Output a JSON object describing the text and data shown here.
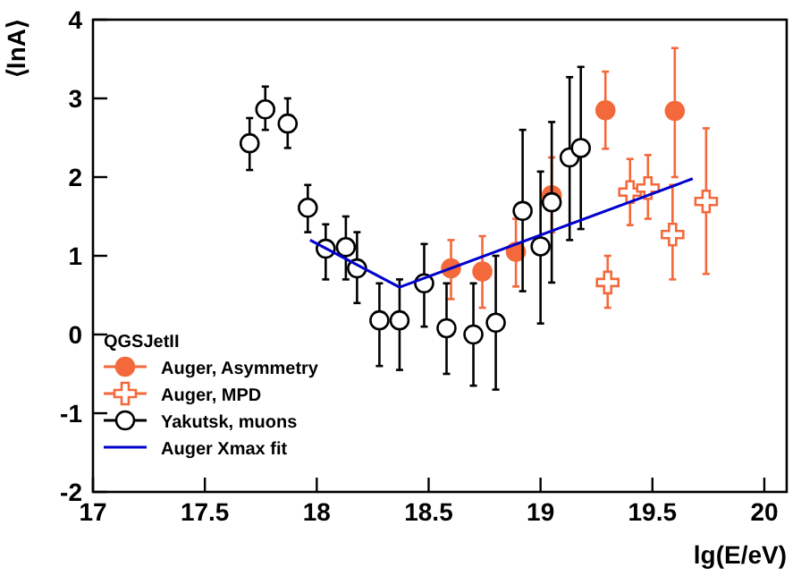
{
  "chart_data": {
    "type": "scatter",
    "xlabel": "lg(E/eV)",
    "ylabel": "⟨lnA⟩",
    "legend_title": "QGSJetII",
    "legend": "bottom left",
    "xlim": [
      17,
      20.1
    ],
    "ylim": [
      -2,
      4
    ],
    "xticks": [
      17,
      17.5,
      18,
      18.5,
      19,
      19.5,
      20
    ],
    "yticks": [
      -2,
      -1,
      0,
      1,
      2,
      3,
      4
    ],
    "series": [
      {
        "name": "Auger, Asymmetry",
        "marker": "circle",
        "color": "#f4693b",
        "x": [
          18.6,
          18.74,
          18.89,
          19.05,
          19.29,
          19.6
        ],
        "values": [
          0.84,
          0.8,
          1.05,
          1.77,
          2.85,
          2.84
        ],
        "errors": [
          [
            0.45,
            1.2
          ],
          [
            0.34,
            1.25
          ],
          [
            0.61,
            1.47
          ],
          [
            1.3,
            2.25
          ],
          [
            2.36,
            3.34
          ],
          [
            2.0,
            3.64
          ]
        ]
      },
      {
        "name": "Auger, MPD",
        "marker": "cross",
        "color": "#f4693b",
        "x": [
          19.3,
          19.4,
          19.48,
          19.59,
          19.74
        ],
        "values": [
          0.66,
          1.81,
          1.86,
          1.27,
          1.69
        ],
        "errors": [
          [
            0.34,
            1.0
          ],
          [
            1.39,
            2.23
          ],
          [
            1.47,
            2.28
          ],
          [
            0.7,
            1.9
          ],
          [
            0.77,
            2.62
          ]
        ]
      },
      {
        "name": "Yakutsk, muons",
        "marker": "circle",
        "color": "#000000",
        "x": [
          17.7,
          17.77,
          17.87,
          17.96,
          18.04,
          18.13,
          18.18,
          18.28,
          18.37,
          18.48,
          18.58,
          18.7,
          18.8,
          18.92,
          19.0,
          19.05,
          19.13,
          19.18
        ],
        "values": [
          2.43,
          2.86,
          2.68,
          1.61,
          1.09,
          1.11,
          0.84,
          0.18,
          0.18,
          0.65,
          0.08,
          0.0,
          0.15,
          1.57,
          1.12,
          1.68,
          2.25,
          2.37
        ],
        "errors": [
          [
            2.09,
            2.75
          ],
          [
            2.6,
            3.15
          ],
          [
            2.37,
            3.0
          ],
          [
            1.3,
            1.9
          ],
          [
            0.7,
            1.4
          ],
          [
            0.7,
            1.5
          ],
          [
            0.4,
            1.3
          ],
          [
            -0.4,
            0.65
          ],
          [
            -0.45,
            0.7
          ],
          [
            0.1,
            1.15
          ],
          [
            -0.5,
            0.65
          ],
          [
            -0.65,
            0.65
          ],
          [
            -0.7,
            1.0
          ],
          [
            0.55,
            2.6
          ],
          [
            0.14,
            2.07
          ],
          [
            0.66,
            2.7
          ],
          [
            1.2,
            3.27
          ],
          [
            1.34,
            3.4
          ]
        ]
      },
      {
        "name": "Auger Xmax fit",
        "type": "line",
        "marker": "none",
        "color": "#0000cc",
        "x": [
          17.97,
          18.37,
          19.68
        ],
        "values": [
          1.2,
          0.6,
          1.98
        ]
      }
    ]
  }
}
